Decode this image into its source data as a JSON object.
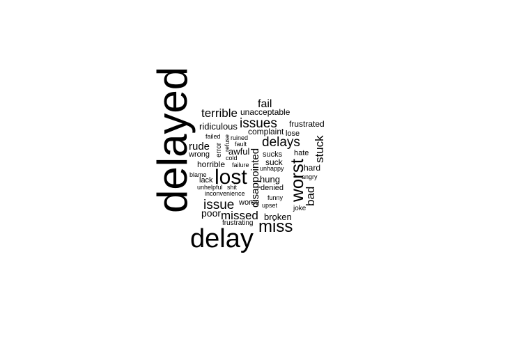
{
  "cloud": {
    "text_color": "#000000",
    "background": "#ffffff",
    "words": {
      "delayed": "delayed",
      "delay": "delay",
      "lost": "lost",
      "worst": "worst",
      "miss": "miss",
      "issues": "issues",
      "issue": "issue",
      "delays": "delays",
      "terrible": "terrible",
      "missed": "missed",
      "fail": "fail",
      "disappointed": "disappointed",
      "stuck": "stuck",
      "bad": "bad",
      "rude": "rude",
      "ridiculous": "ridiculous",
      "unacceptable": "unacceptable",
      "frustrated": "frustrated",
      "complaint": "complaint",
      "lose": "lose",
      "awful": "awful",
      "horrible": "horrible",
      "poor": "poor",
      "broken": "broken",
      "hung": "hung",
      "suck": "suck",
      "sucks": "sucks",
      "hard": "hard",
      "hate": "hate",
      "denied": "denied",
      "worse": "worse",
      "wrong": "wrong",
      "error": "error",
      "refuse": "refuse",
      "failed": "failed",
      "ruined": "ruined",
      "fault": "fault",
      "cold": "cold",
      "failure": "failure",
      "unhappy": "unhappy",
      "angry": "angry",
      "blame": "blame",
      "lack": "lack",
      "unhelpful": "unhelpful",
      "shit": "shit",
      "inconvenience": "inconvenience",
      "funny": "funny",
      "upset": "upset",
      "joke": "joke",
      "frustrating": "frustrating"
    }
  }
}
